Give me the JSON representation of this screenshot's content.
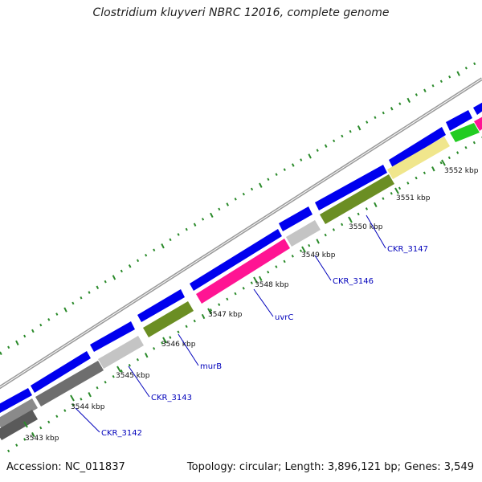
{
  "title": "Clostridium kluyveri NBRC 12016, complete genome",
  "footer": {
    "accession": "Accession: NC_011837",
    "summary": "Topology: circular; Length: 3,896,121 bp; Genes: 3,549"
  },
  "kbp_labels": [
    "3543 kbp",
    "3544 kbp",
    "3545 kbp",
    "3546 kbp",
    "3547 kbp",
    "3548 kbp",
    "3549 kbp",
    "3550 kbp",
    "3551 kbp",
    "3552 kbp"
  ],
  "gene_labels": [
    "CKR_3142",
    "CKR_3143",
    "murB",
    "uvrC",
    "CKR_3146",
    "CKR_3147"
  ],
  "colors": {
    "blue": "#0000ee",
    "gray_dark": "#6e6e6e",
    "gray_light": "#c4c4c4",
    "olive": "#6b8e23",
    "pink": "#ff1493",
    "khaki": "#f0e68c",
    "green": "#22cc22",
    "label_blue": "#0000bb",
    "dots": "#2a8a2a"
  }
}
